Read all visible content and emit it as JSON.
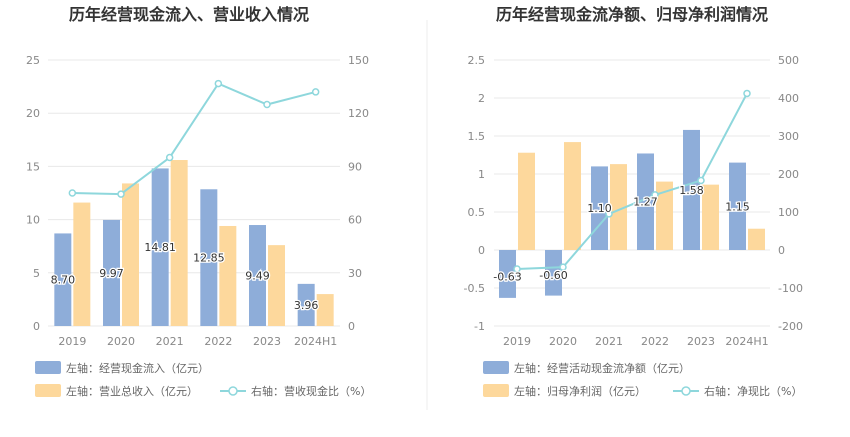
{
  "chart_data": [
    {
      "type": "bar",
      "title": "历年经营现金流入、营业收入情况",
      "categories": [
        "2019",
        "2020",
        "2021",
        "2022",
        "2023",
        "2024H1"
      ],
      "left_axis": {
        "ticks": [
          "0",
          "5",
          "10",
          "15",
          "20",
          "25"
        ],
        "ylim": [
          0,
          25
        ]
      },
      "right_axis": {
        "ticks": [
          "0",
          "30",
          "60",
          "90",
          "120",
          "150"
        ],
        "ylim": [
          0,
          150
        ]
      },
      "grid": true,
      "legend_position": "bottom",
      "series": [
        {
          "name": "左轴：经营现金流入（亿元）",
          "type": "bar",
          "axis": "left",
          "color": "#8eadd9",
          "values": [
            8.7,
            9.97,
            14.81,
            12.85,
            9.49,
            3.96
          ],
          "labels": [
            "8.70",
            "9.97",
            "14.81",
            "12.85",
            "9.49",
            "3.96"
          ]
        },
        {
          "name": "左轴：营业总收入（亿元）",
          "type": "bar",
          "axis": "left",
          "color": "#fdd89c",
          "values": [
            11.6,
            13.4,
            15.6,
            9.4,
            7.6,
            3.0
          ]
        },
        {
          "name": "右轴：营收现金比（%）",
          "type": "line",
          "axis": "right",
          "color": "#8ed7dc",
          "values": [
            75.0,
            74.4,
            95.0,
            136.7,
            124.9,
            132.0
          ]
        }
      ]
    },
    {
      "type": "bar",
      "title": "历年经营现金流净额、归母净利润情况",
      "categories": [
        "2019",
        "2020",
        "2021",
        "2022",
        "2023",
        "2024H1"
      ],
      "left_axis": {
        "ticks": [
          "-1",
          "-0.5",
          "0",
          "0.5",
          "1",
          "1.5",
          "2",
          "2.5"
        ],
        "ylim": [
          -1,
          2.5
        ]
      },
      "right_axis": {
        "ticks": [
          "-200",
          "-100",
          "0",
          "100",
          "200",
          "300",
          "400",
          "500"
        ],
        "ylim": [
          -200,
          500
        ]
      },
      "grid": true,
      "legend_position": "bottom",
      "series": [
        {
          "name": "左轴：经营活动现金流净额（亿元）",
          "type": "bar",
          "axis": "left",
          "color": "#8eadd9",
          "values": [
            -0.63,
            -0.6,
            1.1,
            1.27,
            1.58,
            1.15
          ],
          "labels": [
            "-0.63",
            "-0.60",
            "1.10",
            "1.27",
            "1.58",
            "1.15"
          ]
        },
        {
          "name": "左轴：归母净利润（亿元）",
          "type": "bar",
          "axis": "left",
          "color": "#fdd89c",
          "values": [
            1.28,
            1.42,
            1.13,
            0.9,
            0.86,
            0.28
          ]
        },
        {
          "name": "右轴：净现比（%）",
          "type": "line",
          "axis": "right",
          "color": "#8ed7dc",
          "values": [
            -50,
            -45,
            95,
            145,
            183,
            412
          ]
        }
      ]
    }
  ]
}
